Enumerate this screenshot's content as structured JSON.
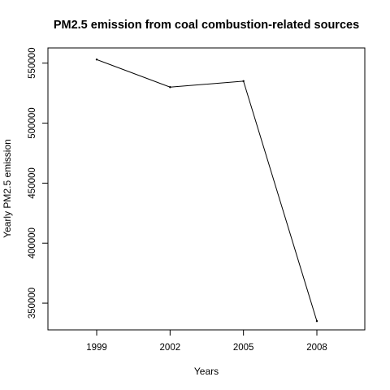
{
  "chart_data": {
    "type": "line",
    "title": "PM2.5 emission from coal combustion-related sources",
    "xlabel": "Years",
    "ylabel": "Yearly PM2.5 emission",
    "categories": [
      "1999",
      "2002",
      "2005",
      "2008"
    ],
    "values": [
      553000,
      530000,
      535000,
      335000
    ],
    "ylim": [
      325000,
      562000
    ],
    "yticks": [
      350000,
      400000,
      450000,
      500000,
      550000
    ],
    "ytick_labels": [
      "350000",
      "400000",
      "450000",
      "500000",
      "550000"
    ],
    "grid": false,
    "line_color": "#000000"
  }
}
